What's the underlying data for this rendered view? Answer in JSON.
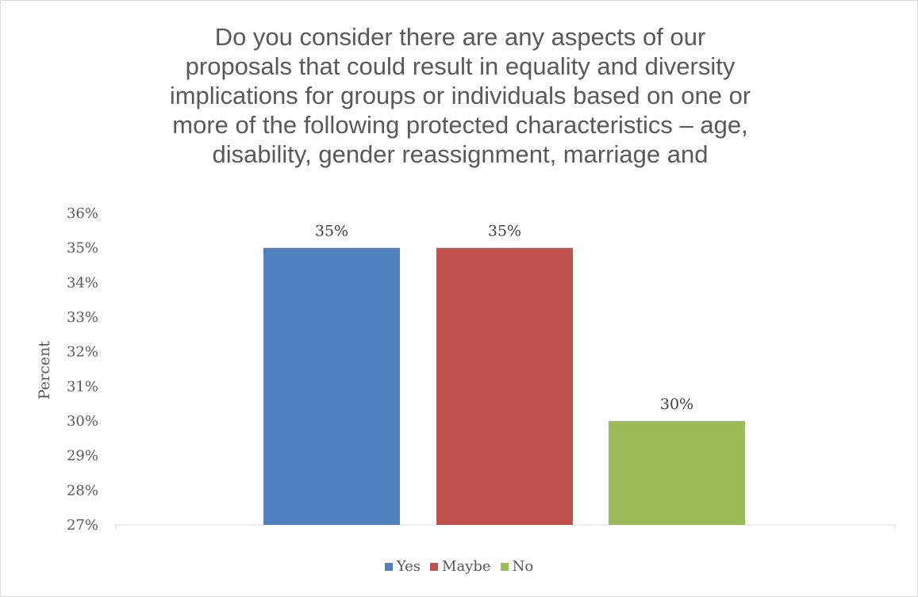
{
  "chart_data": {
    "type": "bar",
    "title_lines": [
      "Do you consider there are any aspects of our",
      "proposals that could result in equality and diversity",
      "implications for groups or individuals based on one or",
      "more of the following protected characteristics – age,",
      "disability, gender reassignment, marriage and"
    ],
    "ylabel": "Percent",
    "ylim": [
      27,
      36
    ],
    "yticks": [
      "27%",
      "28%",
      "29%",
      "30%",
      "31%",
      "32%",
      "33%",
      "34%",
      "35%",
      "36%"
    ],
    "categories": [
      "Yes",
      "Maybe",
      "No"
    ],
    "values": [
      35,
      35,
      30
    ],
    "data_labels": [
      "35%",
      "35%",
      "30%"
    ],
    "colors": [
      "#4f81bd",
      "#c0504d",
      "#9bbb59"
    ],
    "legend": {
      "position": "bottom",
      "entries": [
        "Yes",
        "Maybe",
        "No"
      ]
    }
  }
}
